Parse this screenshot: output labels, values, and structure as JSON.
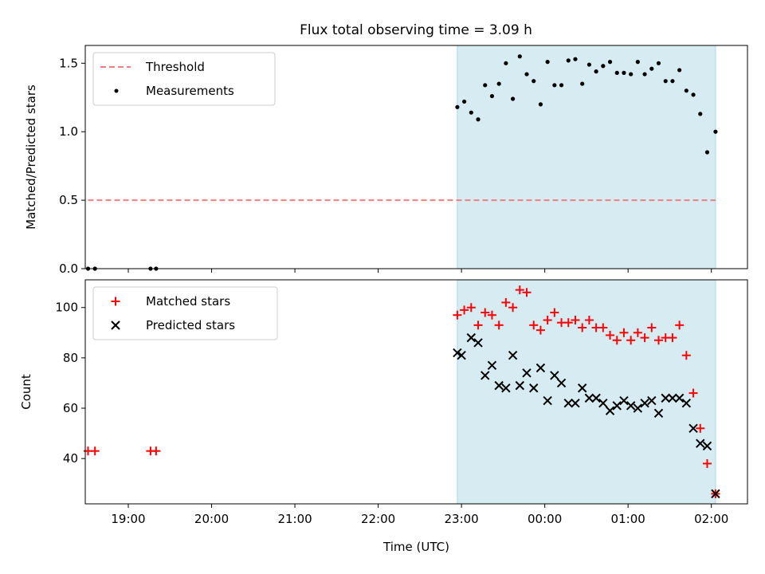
{
  "title": "Flux total observing time = 3.09 h",
  "colors": {
    "threshold": "#f08080",
    "measurements": "#000000",
    "matched": "#ff0000",
    "predicted": "#000000",
    "span": "#add8e6"
  },
  "chart_data": [
    {
      "type": "scatter",
      "ylabel": "Matched/Predicted stars",
      "ylim": [
        0,
        1.63
      ],
      "yticks": [
        0.0,
        0.5,
        1.0,
        1.5
      ],
      "ytick_labels": [
        "0.0",
        "0.5",
        "1.0",
        "1.5"
      ],
      "xlim": [
        "18:29",
        "02:26"
      ],
      "xtick_labels_shown": false,
      "highlight_span": {
        "start": "22:57",
        "end": "02:03"
      },
      "legend": {
        "placement": "top-left",
        "entries": [
          "Threshold",
          "Measurements"
        ]
      },
      "threshold": {
        "name": "Threshold",
        "y": 0.5,
        "x_start": "18:31",
        "x_end": "02:03",
        "style": "dashed"
      },
      "series": [
        {
          "name": "Measurements",
          "marker": "dot",
          "x": [
            "18:31",
            "18:36",
            "19:16",
            "19:20",
            "22:57",
            "23:02",
            "23:07",
            "23:12",
            "23:17",
            "23:22",
            "23:27",
            "23:32",
            "23:37",
            "23:42",
            "23:47",
            "23:52",
            "23:57",
            "00:02",
            "00:07",
            "00:12",
            "00:17",
            "00:22",
            "00:27",
            "00:32",
            "00:37",
            "00:42",
            "00:47",
            "00:52",
            "00:57",
            "01:02",
            "01:07",
            "01:12",
            "01:17",
            "01:22",
            "01:27",
            "01:32",
            "01:37",
            "01:42",
            "01:47",
            "01:52",
            "01:57",
            "02:03"
          ],
          "y": [
            0.0,
            0.0,
            0.0,
            0.0,
            1.18,
            1.22,
            1.14,
            1.09,
            1.34,
            1.26,
            1.35,
            1.5,
            1.24,
            1.55,
            1.42,
            1.37,
            1.2,
            1.51,
            1.34,
            1.34,
            1.52,
            1.53,
            1.35,
            1.49,
            1.44,
            1.48,
            1.51,
            1.43,
            1.43,
            1.42,
            1.51,
            1.42,
            1.46,
            1.5,
            1.37,
            1.37,
            1.45,
            1.3,
            1.27,
            1.13,
            0.85,
            1.0
          ]
        }
      ]
    },
    {
      "type": "scatter",
      "ylabel": "Count",
      "xlabel": "Time (UTC)",
      "ylim": [
        22,
        111
      ],
      "yticks": [
        40,
        60,
        80,
        100
      ],
      "ytick_labels": [
        "40",
        "60",
        "80",
        "100"
      ],
      "xlim": [
        "18:29",
        "02:26"
      ],
      "xticks": [
        "19:00",
        "20:00",
        "21:00",
        "22:00",
        "23:00",
        "00:00",
        "01:00",
        "02:00"
      ],
      "xtick_labels": [
        "19:00",
        "20:00",
        "21:00",
        "22:00",
        "23:00",
        "00:00",
        "01:00",
        "02:00"
      ],
      "highlight_span": {
        "start": "22:57",
        "end": "02:03"
      },
      "legend": {
        "placement": "top-left",
        "entries": [
          "Matched stars",
          "Predicted stars"
        ]
      },
      "series": [
        {
          "name": "Matched stars",
          "marker": "plus",
          "x": [
            "18:31",
            "18:36",
            "19:16",
            "19:20",
            "22:57",
            "23:02",
            "23:07",
            "23:12",
            "23:17",
            "23:22",
            "23:27",
            "23:32",
            "23:37",
            "23:42",
            "23:47",
            "23:52",
            "23:57",
            "00:02",
            "00:07",
            "00:12",
            "00:17",
            "00:22",
            "00:27",
            "00:32",
            "00:37",
            "00:42",
            "00:47",
            "00:52",
            "00:57",
            "01:02",
            "01:07",
            "01:12",
            "01:17",
            "01:22",
            "01:27",
            "01:32",
            "01:37",
            "01:42",
            "01:47",
            "01:52",
            "01:57",
            "02:03"
          ],
          "y": [
            43,
            43,
            43,
            43,
            97,
            99,
            100,
            93,
            98,
            97,
            93,
            102,
            100,
            107,
            106,
            93,
            91,
            95,
            98,
            94,
            94,
            95,
            92,
            95,
            92,
            92,
            89,
            87,
            90,
            87,
            90,
            88,
            92,
            87,
            88,
            88,
            93,
            81,
            66,
            52,
            38,
            26
          ]
        },
        {
          "name": "Predicted stars",
          "marker": "x",
          "x": [
            "22:57",
            "23:00",
            "23:07",
            "23:12",
            "23:17",
            "23:22",
            "23:27",
            "23:32",
            "23:37",
            "23:42",
            "23:47",
            "23:52",
            "23:57",
            "00:02",
            "00:07",
            "00:12",
            "00:17",
            "00:22",
            "00:27",
            "00:32",
            "00:37",
            "00:42",
            "00:47",
            "00:52",
            "00:57",
            "01:02",
            "01:07",
            "01:12",
            "01:17",
            "01:22",
            "01:27",
            "01:32",
            "01:37",
            "01:42",
            "01:47",
            "01:52",
            "01:57",
            "02:03"
          ],
          "y": [
            82,
            81,
            88,
            86,
            73,
            77,
            69,
            68,
            81,
            69,
            74,
            68,
            76,
            63,
            73,
            70,
            62,
            62,
            68,
            64,
            64,
            62,
            59,
            61,
            63,
            61,
            60,
            62,
            63,
            58,
            64,
            64,
            64,
            62,
            52,
            46,
            45,
            26
          ]
        }
      ]
    }
  ]
}
